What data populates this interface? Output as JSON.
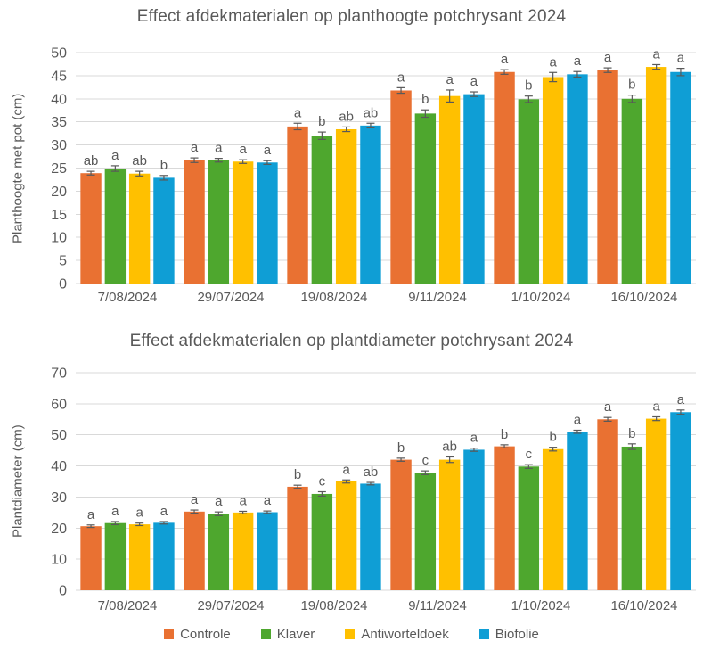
{
  "style": {
    "background": "#FFFFFF",
    "grid_color": "#D9D9D9",
    "text_color": "#595959",
    "error_bar_color": "#595959"
  },
  "legend": {
    "position": "bottom",
    "items": [
      {
        "label": "Controle",
        "color": "#E97132"
      },
      {
        "label": "Klaver",
        "color": "#4EA72E"
      },
      {
        "label": "Antiworteldoek",
        "color": "#FFC000"
      },
      {
        "label": "Biofolie",
        "color": "#0F9ED5"
      }
    ]
  },
  "chart_data": [
    {
      "type": "bar",
      "title": "Effect afdekmaterialen op planthoogte potchrysant 2024",
      "xlabel": "",
      "ylabel": "Planthoogte met pot (cm)",
      "ylim": [
        0,
        50
      ],
      "ytick_step": 5,
      "grid": true,
      "legend_position": "bottom-shared",
      "error_bars": true,
      "categories": [
        "7/08/2024",
        "29/07/2024",
        "19/08/2024",
        "9/11/2024",
        "1/10/2024",
        "16/10/2024"
      ],
      "series": [
        {
          "name": "Controle",
          "color": "#E97132",
          "values": [
            23.9,
            26.7,
            34.0,
            41.8,
            45.8,
            46.2
          ],
          "errors": [
            0.4,
            0.5,
            0.7,
            0.6,
            0.5,
            0.5
          ],
          "letters": [
            "ab",
            "a",
            "a",
            "a",
            "a",
            "a"
          ]
        },
        {
          "name": "Klaver",
          "color": "#4EA72E",
          "values": [
            24.9,
            26.7,
            32.0,
            36.8,
            39.9,
            40.0
          ],
          "errors": [
            0.6,
            0.4,
            0.8,
            0.8,
            0.7,
            0.8
          ],
          "letters": [
            "a",
            "a",
            "b",
            "b",
            "b",
            "b"
          ]
        },
        {
          "name": "Antiworteldoek",
          "color": "#FFC000",
          "values": [
            23.8,
            26.4,
            33.4,
            40.6,
            44.7,
            46.9
          ],
          "errors": [
            0.5,
            0.4,
            0.5,
            1.3,
            1.0,
            0.5
          ],
          "letters": [
            "ab",
            "a",
            "ab",
            "a",
            "a",
            "a"
          ]
        },
        {
          "name": "Biofolie",
          "color": "#0F9ED5",
          "values": [
            22.9,
            26.2,
            34.2,
            41.0,
            45.3,
            45.8
          ],
          "errors": [
            0.5,
            0.4,
            0.5,
            0.5,
            0.6,
            0.8
          ],
          "letters": [
            "b",
            "a",
            "ab",
            "a",
            "a",
            "a"
          ]
        }
      ]
    },
    {
      "type": "bar",
      "title": "Effect afdekmaterialen op plantdiameter potchrysant 2024",
      "xlabel": "",
      "ylabel": "Plantdiameter (cm)",
      "ylim": [
        0,
        70
      ],
      "ytick_step": 10,
      "grid": true,
      "legend_position": "bottom-shared",
      "error_bars": true,
      "categories": [
        "7/08/2024",
        "29/07/2024",
        "19/08/2024",
        "9/11/2024",
        "1/10/2024",
        "16/10/2024"
      ],
      "series": [
        {
          "name": "Controle",
          "color": "#E97132",
          "values": [
            20.6,
            25.3,
            33.3,
            42.0,
            46.3,
            55.0
          ],
          "errors": [
            0.4,
            0.5,
            0.5,
            0.5,
            0.5,
            0.6
          ],
          "letters": [
            "a",
            "a",
            "b",
            "b",
            "b",
            "a"
          ]
        },
        {
          "name": "Klaver",
          "color": "#4EA72E",
          "values": [
            21.6,
            24.6,
            31.0,
            37.8,
            39.8,
            46.2
          ],
          "errors": [
            0.5,
            0.6,
            0.7,
            0.6,
            0.6,
            0.9
          ],
          "letters": [
            "a",
            "a",
            "c",
            "c",
            "c",
            "b"
          ]
        },
        {
          "name": "Antiworteldoek",
          "color": "#FFC000",
          "values": [
            21.2,
            25.0,
            35.0,
            42.0,
            45.4,
            55.2
          ],
          "errors": [
            0.4,
            0.4,
            0.5,
            0.9,
            0.6,
            0.6
          ],
          "letters": [
            "a",
            "a",
            "a",
            "ab",
            "b",
            "a"
          ]
        },
        {
          "name": "Biofolie",
          "color": "#0F9ED5",
          "values": [
            21.7,
            25.1,
            34.3,
            45.2,
            51.0,
            57.3
          ],
          "errors": [
            0.4,
            0.4,
            0.4,
            0.5,
            0.5,
            0.7
          ],
          "letters": [
            "a",
            "a",
            "ab",
            "a",
            "a",
            "a"
          ]
        }
      ]
    }
  ]
}
